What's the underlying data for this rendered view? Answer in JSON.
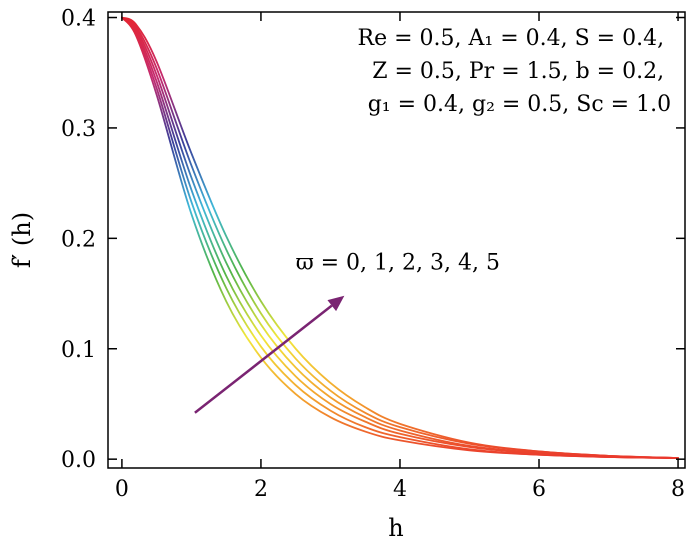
{
  "chart_data": {
    "type": "line",
    "xlabel": "h",
    "ylabel": "f′ (h)",
    "xlim": [
      -0.2,
      8.1
    ],
    "ylim": [
      -0.008,
      0.405
    ],
    "xticks": [
      0,
      2,
      4,
      6,
      8
    ],
    "yticks": [
      0.0,
      0.1,
      0.2,
      0.3,
      0.4
    ],
    "xtick_labels": [
      "0",
      "2",
      "4",
      "6",
      "8"
    ],
    "ytick_labels": [
      "0.0",
      "0.1",
      "0.2",
      "0.3",
      "0.4"
    ],
    "grid": false,
    "legend": "none",
    "colormap": [
      "#e8262c",
      "#c42a6e",
      "#3a3f9a",
      "#3fb8d8",
      "#52b548",
      "#f2e63a",
      "#f39a2c",
      "#e8262c"
    ],
    "series": [
      {
        "x": [
          0,
          0.2,
          0.5,
          1.0,
          1.5,
          2.0,
          2.5,
          3.0,
          3.5,
          4.0,
          5.0,
          6.0,
          7.0,
          8.0
        ],
        "values": [
          0.4,
          0.384,
          0.33,
          0.222,
          0.143,
          0.092,
          0.059,
          0.038,
          0.025,
          0.017,
          0.008,
          0.004,
          0.002,
          0.001
        ]
      },
      {
        "x": [
          0,
          0.2,
          0.5,
          1.0,
          1.5,
          2.0,
          2.5,
          3.0,
          3.5,
          4.0,
          5.0,
          6.0,
          7.0,
          8.0
        ],
        "values": [
          0.4,
          0.386,
          0.336,
          0.233,
          0.155,
          0.102,
          0.067,
          0.044,
          0.029,
          0.02,
          0.009,
          0.004,
          0.002,
          0.001
        ]
      },
      {
        "x": [
          0,
          0.2,
          0.5,
          1.0,
          1.5,
          2.0,
          2.5,
          3.0,
          3.5,
          4.0,
          5.0,
          6.0,
          7.0,
          8.0
        ],
        "values": [
          0.4,
          0.388,
          0.342,
          0.244,
          0.166,
          0.112,
          0.075,
          0.05,
          0.034,
          0.023,
          0.011,
          0.005,
          0.002,
          0.001
        ]
      },
      {
        "x": [
          0,
          0.2,
          0.5,
          1.0,
          1.5,
          2.0,
          2.5,
          3.0,
          3.5,
          4.0,
          5.0,
          6.0,
          7.0,
          8.0
        ],
        "values": [
          0.4,
          0.39,
          0.348,
          0.255,
          0.178,
          0.122,
          0.083,
          0.056,
          0.038,
          0.026,
          0.012,
          0.006,
          0.003,
          0.001
        ]
      },
      {
        "x": [
          0,
          0.2,
          0.5,
          1.0,
          1.5,
          2.0,
          2.5,
          3.0,
          3.5,
          4.0,
          5.0,
          6.0,
          7.0,
          8.0
        ],
        "values": [
          0.4,
          0.392,
          0.354,
          0.266,
          0.19,
          0.132,
          0.091,
          0.062,
          0.042,
          0.029,
          0.014,
          0.007,
          0.003,
          0.001
        ]
      },
      {
        "x": [
          0,
          0.2,
          0.5,
          1.0,
          1.5,
          2.0,
          2.5,
          3.0,
          3.5,
          4.0,
          5.0,
          6.0,
          7.0,
          8.0
        ],
        "values": [
          0.4,
          0.394,
          0.36,
          0.277,
          0.202,
          0.143,
          0.1,
          0.069,
          0.047,
          0.032,
          0.015,
          0.007,
          0.003,
          0.001
        ]
      }
    ],
    "arrow": {
      "from": [
        1.05,
        0.042
      ],
      "to": [
        3.2,
        0.148
      ],
      "color": "#7a2472"
    },
    "param_text": {
      "line1": "Re = 0.5, A₁ = 0.4, S = 0.4,",
      "line2": "Z = 0.5, Pr = 1.5, b = 0.2,",
      "line3": "g₁ = 0.4, g₂ = 0.5, Sc = 1.0"
    },
    "param_anchor": [
      7.9,
      0.375
    ],
    "arrow_label": "ϖ = 0, 1, 2, 3, 4, 5",
    "arrow_label_anchor": [
      2.5,
      0.172
    ]
  }
}
